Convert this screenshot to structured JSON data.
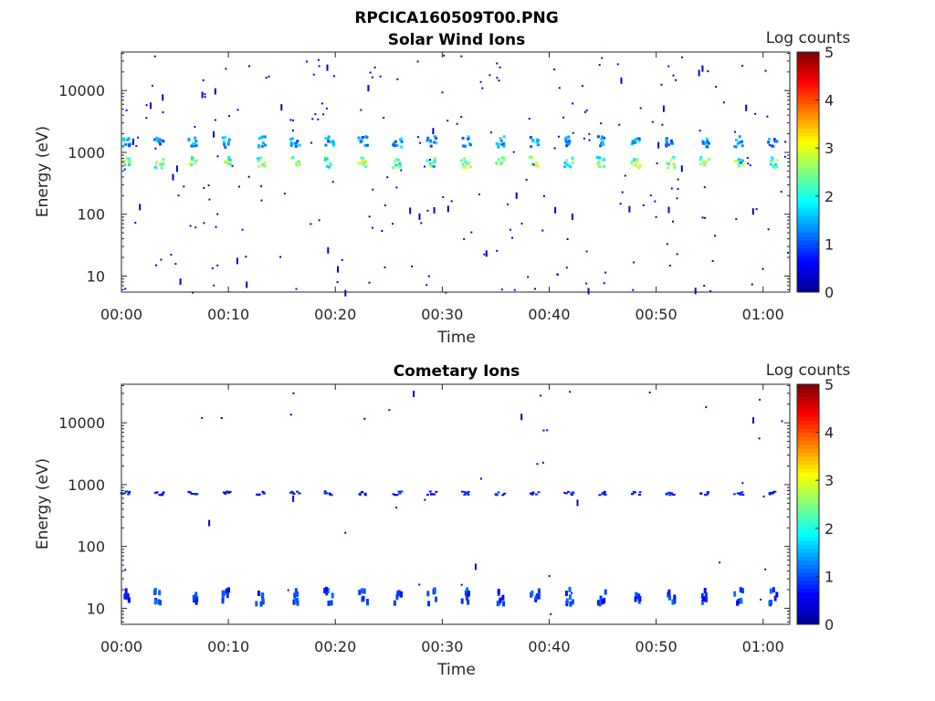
{
  "figure": {
    "title": "RPCICA160509T00.PNG"
  },
  "colormap": [
    "#00008f",
    "#0000ff",
    "#0080ff",
    "#00ffff",
    "#80ff80",
    "#ffff00",
    "#ff8000",
    "#ff0000",
    "#800000"
  ],
  "chart_data": [
    {
      "type": "heatmap",
      "title": "Solar Wind Ions",
      "xlabel": "Time",
      "ylabel": "Energy (eV)",
      "colorbar_label": "Log counts",
      "colorbar_ticks": [
        "0",
        "1",
        "2",
        "3",
        "4",
        "5"
      ],
      "clim": [
        0,
        5
      ],
      "x_ticks": [
        "00:00",
        "00:10",
        "00:20",
        "00:30",
        "00:40",
        "00:50",
        "01:00"
      ],
      "x_tick_minutes": [
        0,
        10,
        20,
        30,
        40,
        50,
        60
      ],
      "xlim_minutes": [
        0,
        62.5
      ],
      "y_scale": "log",
      "y_ticks": [
        "10",
        "100",
        "1000",
        "10000"
      ],
      "y_tick_values": [
        10,
        100,
        1000,
        10000
      ],
      "ylim": [
        5.5,
        42000
      ],
      "band_energies_eV": [
        1550,
        720
      ],
      "band_times_minutes": [
        0.3,
        3.4,
        6.6,
        9.7,
        12.9,
        16.1,
        19.3,
        22.5,
        25.7,
        28.9,
        32.1,
        35.3,
        38.5,
        41.7,
        44.8,
        48.0,
        51.2,
        54.4,
        57.6,
        60.8
      ],
      "band_log_counts": [
        1.5,
        2.6
      ],
      "background_log_counts": 0.4
    },
    {
      "type": "heatmap",
      "title": "Cometary Ions",
      "xlabel": "Time",
      "ylabel": "Energy (eV)",
      "colorbar_label": "Log counts",
      "colorbar_ticks": [
        "0",
        "1",
        "2",
        "3",
        "4",
        "5"
      ],
      "clim": [
        0,
        5
      ],
      "x_ticks": [
        "00:00",
        "00:10",
        "00:20",
        "00:30",
        "00:40",
        "00:50",
        "01:00"
      ],
      "x_tick_minutes": [
        0,
        10,
        20,
        30,
        40,
        50,
        60
      ],
      "xlim_minutes": [
        0,
        62.5
      ],
      "y_scale": "log",
      "y_ticks": [
        "10",
        "100",
        "1000",
        "10000"
      ],
      "y_tick_values": [
        10,
        100,
        1000,
        10000
      ],
      "ylim": [
        5.5,
        42000
      ],
      "band_energies_eV": [
        750,
        17
      ],
      "band_times_minutes": [
        0.3,
        3.4,
        6.6,
        9.7,
        12.9,
        16.1,
        19.3,
        22.5,
        25.7,
        28.9,
        32.1,
        35.3,
        38.5,
        41.7,
        44.8,
        48.0,
        51.2,
        54.4,
        57.6,
        60.8
      ],
      "band_log_counts": [
        0.8,
        1.0
      ],
      "background_log_counts": 0.4
    }
  ]
}
